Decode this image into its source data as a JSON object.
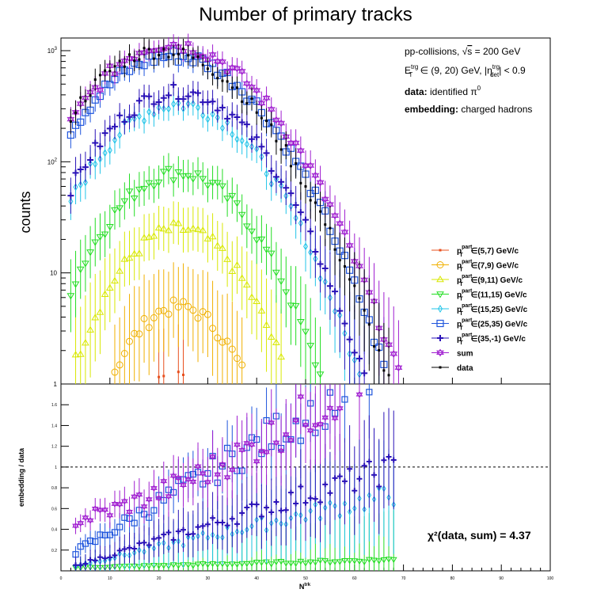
{
  "chart_data": {
    "type": "scatter",
    "title": "Number of primary tracks",
    "xlabel": "N^trk",
    "ylabel_top": "counts",
    "ylabel_bottom": "embedding / data",
    "xlim": [
      0,
      100
    ],
    "ylim_top": [
      1,
      1300
    ],
    "yscale_top": "log",
    "ylim_bottom": [
      0,
      1.8
    ],
    "grid": false,
    "legend_position": "center-right",
    "x_ticks": [
      0,
      10,
      20,
      30,
      40,
      50,
      60,
      70,
      80,
      90,
      100
    ],
    "y_ticks_top": [
      {
        "value": 1,
        "label": "1"
      },
      {
        "value": 10,
        "label": "10"
      },
      {
        "value": 100,
        "label": "10^2"
      },
      {
        "value": 1000,
        "label": "10^3"
      }
    ],
    "y_ticks_bottom": [
      0.2,
      0.4,
      0.6,
      0.8,
      1,
      1.2,
      1.4,
      1.6
    ],
    "reference_line": 1,
    "annotations": {
      "line1": "pp-collisions, √s = 200 GeV",
      "line2_prefix": "E",
      "line2_sup": "trg",
      "line2_sub": "T",
      "line2_mid": " ∈ (9, 20) GeV, |η",
      "line2_sup2": "trg",
      "line2_sub2": "det",
      "line2_end": "| < 0.9",
      "line3_bold": "data:",
      "line3_rest": " identified π",
      "line3_sup": "0",
      "line4_bold": "embedding:",
      "line4_rest": " charged hadrons",
      "chi2": "χ²(data, sum) = 4.37"
    },
    "series": [
      {
        "name": "p_T^part ∈(5,7) GeV/c",
        "color": "#e8501f",
        "marker": "square-small",
        "peak": 1.2,
        "mu": 22,
        "sigma": 6
      },
      {
        "name": "p_T^part ∈(7,9) GeV/c",
        "color": "#f0b000",
        "marker": "circle",
        "peak": 5,
        "mu": 24,
        "sigma": 8
      },
      {
        "name": "p_T^part ∈(9,11) GeV/c",
        "color": "#d8e800",
        "marker": "triangle-up",
        "peak": 25,
        "mu": 24,
        "sigma": 9
      },
      {
        "name": "p_T^part ∈(11,15) GeV/c",
        "color": "#22dd22",
        "marker": "triangle-down",
        "peak": 80,
        "mu": 24,
        "sigma": 10
      },
      {
        "name": "p_T^part ∈(15,25) GeV/c",
        "color": "#22c4e8",
        "marker": "diamond",
        "peak": 330,
        "mu": 24,
        "sigma": 11
      },
      {
        "name": "p_T^part ∈(25,35) GeV/c",
        "color": "#1f55dd",
        "marker": "square-open",
        "peak": 900,
        "mu": 23,
        "sigma": 12
      },
      {
        "name": "p_T^part ∈(35,-1) GeV/c",
        "color": "#2a12b8",
        "marker": "cross",
        "peak": 430,
        "mu": 24,
        "sigma": 11
      },
      {
        "name": "sum",
        "color": "#a01ed0",
        "marker": "star",
        "peak": 1150,
        "mu": 22,
        "sigma": 11
      },
      {
        "name": "data",
        "color": "#000000",
        "marker": "point",
        "peak": 1000,
        "mu": 20,
        "sigma": 11
      }
    ],
    "ratio_series": [
      {
        "name": "p_T^part ∈(11,15) GeV/c",
        "color": "#22dd22",
        "marker": "triangle-down",
        "a": 0.03,
        "b": 0.0012
      },
      {
        "name": "p_T^part ∈(15,25) GeV/c",
        "color": "#22c4e8",
        "marker": "diamond",
        "a": 0.05,
        "b": 0.0105
      },
      {
        "name": "p_T^part ∈(25,35) GeV/c",
        "color": "#1f55dd",
        "marker": "square-open",
        "a": 0.18,
        "b": 0.028
      },
      {
        "name": "p_T^part ∈(35,-1) GeV/c",
        "color": "#2a12b8",
        "marker": "cross",
        "a": 0.05,
        "b": 0.0145
      },
      {
        "name": "sum",
        "color": "#a01ed0",
        "marker": "star",
        "a": 0.45,
        "b": 0.022
      }
    ]
  }
}
